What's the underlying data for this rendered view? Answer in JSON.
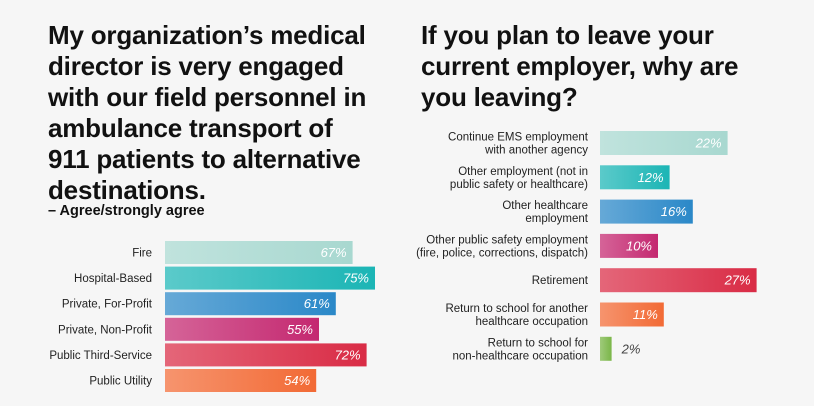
{
  "left": {
    "title": "My organization’s medical director is very engaged with our field personnel in ambulance transport of 911 patients to alternative destinations.",
    "subtitle": "– Agree/strongly agree"
  },
  "right": {
    "title": "If you plan to leave your current employer, why are you leaving?"
  },
  "chart_data": [
    {
      "type": "bar",
      "orientation": "horizontal",
      "title": "My organization’s medical director is very engaged with our field personnel in ambulance transport of 911 patients to alternative destinations.",
      "subtitle": "– Agree/strongly agree",
      "categories": [
        "Fire",
        "Hospital-Based",
        "Private, For-Profit",
        "Private, Non-Profit",
        "Public Third-Service",
        "Public Utility"
      ],
      "values": [
        67,
        75,
        61,
        55,
        72,
        54
      ],
      "value_labels": [
        "67%",
        "75%",
        "61%",
        "55%",
        "72%",
        "54%"
      ],
      "colors": [
        "#a8d8d0",
        "#1bb5b5",
        "#2a88c8",
        "#c42870",
        "#d92b45",
        "#f26a35"
      ],
      "unit": "%",
      "grid": false,
      "xlim": [
        0,
        100
      ]
    },
    {
      "type": "bar",
      "orientation": "horizontal",
      "title": "If you plan to leave your current employer, why are you leaving?",
      "categories": [
        [
          "Continue EMS employment",
          "with another agency"
        ],
        [
          "Other employment (not in",
          "public safety or healthcare)"
        ],
        [
          "Other healthcare",
          "employment"
        ],
        [
          "Other public safety employment",
          "(fire, police, corrections, dispatch)"
        ],
        [
          "Retirement"
        ],
        [
          "Return to school for another",
          "healthcare occupation"
        ],
        [
          "Return to school for",
          "non-healthcare occupation"
        ]
      ],
      "values": [
        22,
        12,
        16,
        10,
        27,
        11,
        2
      ],
      "value_labels": [
        "22%",
        "12%",
        "16%",
        "10%",
        "27%",
        "11%",
        "2%"
      ],
      "colors": [
        "#a8d8d0",
        "#1bb5b5",
        "#2a88c8",
        "#c42870",
        "#d92b45",
        "#f26a35",
        "#7ab648"
      ],
      "unit": "%",
      "grid": false,
      "xlim": [
        0,
        100
      ]
    }
  ]
}
